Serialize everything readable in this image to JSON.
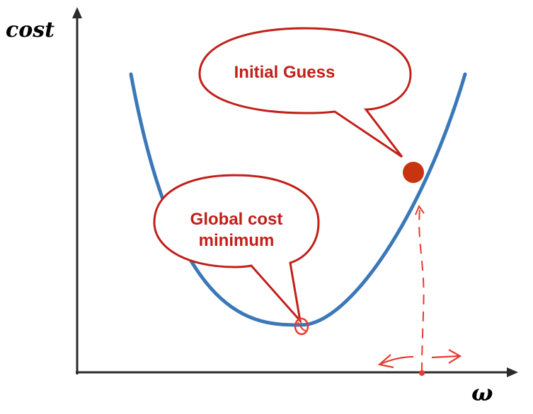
{
  "axes": {
    "y_label": "cost",
    "x_label": "ω"
  },
  "callouts": {
    "initial_guess": "Initial Guess",
    "global_minimum_line1": "Global cost",
    "global_minimum_line2": "minimum"
  },
  "colors": {
    "curve": "#3b78b8",
    "callout_stroke": "#c0201a",
    "callout_fill": "#ffffff",
    "callout_text": "#c0201a",
    "guess_point": "#c8340f",
    "annotation": "#e83a2c",
    "axis": "#2b2b2b"
  }
}
